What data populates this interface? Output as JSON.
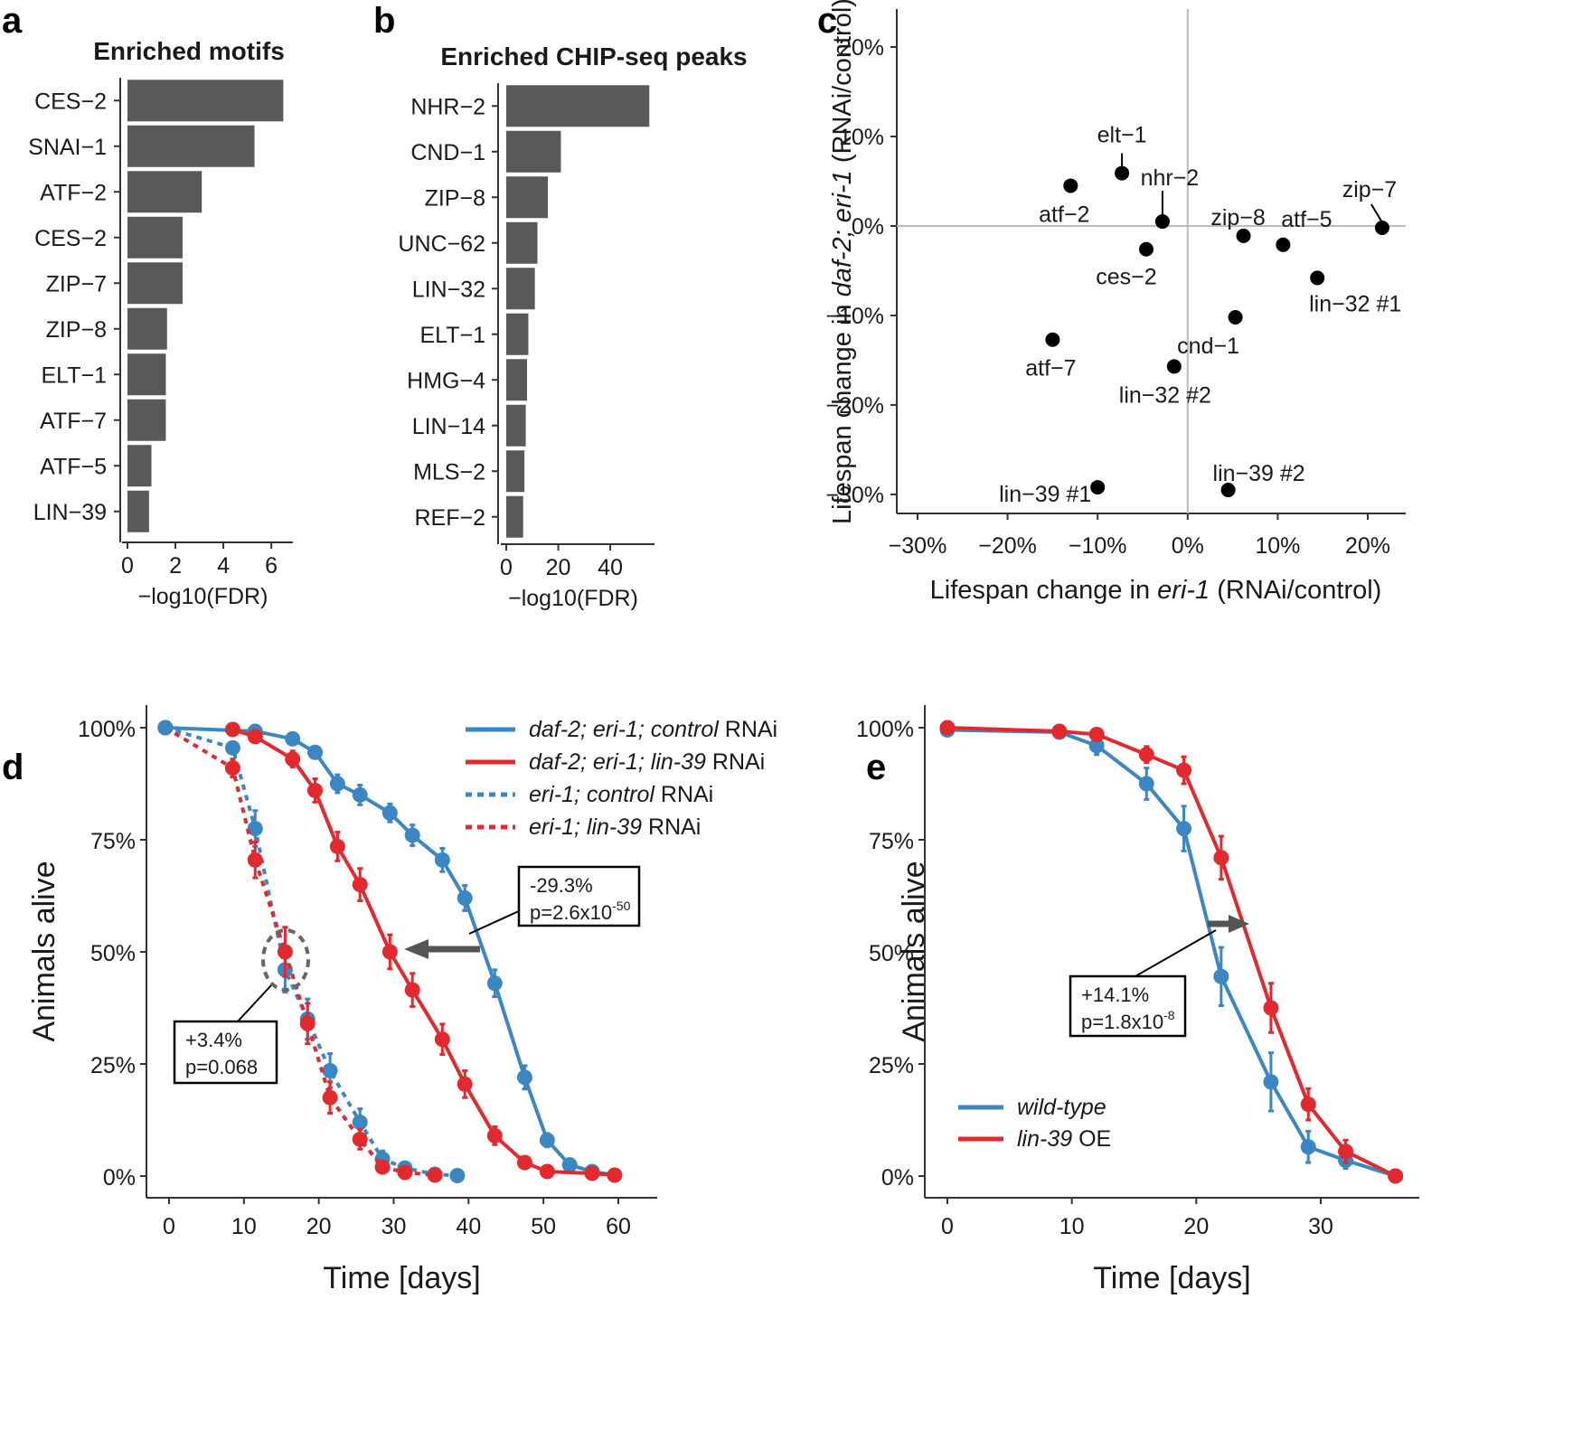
{
  "panels": {
    "a": "a",
    "b": "b",
    "c": "c",
    "d": "d",
    "e": "e"
  },
  "chart_data": [
    {
      "id": "a",
      "type": "bar",
      "orientation": "horizontal",
      "title": "Enriched motifs",
      "categories": [
        "CES−2",
        "SNAI−1",
        "ATF−2",
        "CES−2",
        "ZIP−7",
        "ZIP−8",
        "ELT−1",
        "ATF−7",
        "ATF−5",
        "LIN−39"
      ],
      "values": [
        6.5,
        5.3,
        3.1,
        2.3,
        2.3,
        1.65,
        1.6,
        1.6,
        1.0,
        0.9
      ],
      "xlabel": "−log10(FDR)",
      "xlim": [
        0,
        6.9
      ],
      "xticks": [
        0,
        2,
        4,
        6
      ],
      "xtick_labels": [
        "0",
        "2",
        "4",
        "6"
      ],
      "color": "#595959"
    },
    {
      "id": "b",
      "type": "bar",
      "orientation": "horizontal",
      "title": "Enriched CHIP-seq peaks",
      "categories": [
        "NHR−2",
        "CND−1",
        "ZIP−8",
        "UNC−62",
        "LIN−32",
        "ELT−1",
        "HMG−4",
        "LIN−14",
        "MLS−2",
        "REF−2"
      ],
      "values": [
        55,
        21,
        16,
        12,
        11,
        8.5,
        8,
        7.5,
        7,
        6.5
      ],
      "xlabel": "−log10(FDR)",
      "xlim": [
        0,
        57
      ],
      "xticks": [
        0,
        20,
        40
      ],
      "xtick_labels": [
        "0",
        "20",
        "40"
      ],
      "color": "#595959"
    },
    {
      "id": "c",
      "type": "scatter",
      "xlabel_parts": [
        {
          "t": "Lifespan change in ",
          "i": false
        },
        {
          "t": "eri-1",
          "i": true
        },
        {
          "t": " (RNAi/control)",
          "i": false
        }
      ],
      "ylabel_parts": [
        {
          "t": "Lifespan change in ",
          "i": false
        },
        {
          "t": "daf-2; eri-1",
          "i": true
        },
        {
          "t": " (RNAi/control)",
          "i": false
        }
      ],
      "xlim": [
        -33,
        25
      ],
      "ylim": [
        -32,
        24.5
      ],
      "xticks": [
        -30,
        -20,
        -10,
        0,
        10,
        20
      ],
      "xtick_labels": [
        "−30%",
        "−20%",
        "−10%",
        "0%",
        "10%",
        "20%"
      ],
      "yticks": [
        -30,
        -20,
        -10,
        0,
        10,
        20
      ],
      "ytick_labels": [
        "−30%",
        "−20%",
        "−10%",
        "0%",
        "10%",
        "20%"
      ],
      "points": [
        {
          "label": "elt−1",
          "x": -7.3,
          "y": 5.9
        },
        {
          "label": "atf−2",
          "x": -13.0,
          "y": 4.5
        },
        {
          "label": "nhr−2",
          "x": -2.8,
          "y": 0.5
        },
        {
          "label": "zip−7",
          "x": 21.6,
          "y": -0.2
        },
        {
          "label": "zip−8",
          "x": 6.2,
          "y": -1.1
        },
        {
          "label": "atf−5",
          "x": 10.6,
          "y": -2.1
        },
        {
          "label": "ces−2",
          "x": -4.6,
          "y": -2.6
        },
        {
          "label": "lin−32 #1",
          "x": 14.4,
          "y": -5.8
        },
        {
          "label": "cnd−1",
          "x": 5.3,
          "y": -10.2
        },
        {
          "label": "atf−7",
          "x": -15.0,
          "y": -12.7
        },
        {
          "label": "lin−32 #2",
          "x": -1.5,
          "y": -15.7
        },
        {
          "label": "lin−39 #1",
          "x": -10.0,
          "y": -29.2
        },
        {
          "label": "lin−39 #2",
          "x": 4.5,
          "y": -29.5
        }
      ]
    },
    {
      "id": "d",
      "type": "line",
      "xlabel": "Time [days]",
      "ylabel": "Animals alive",
      "xlim": [
        -3,
        65.5
      ],
      "ylim": [
        -3,
        104.5
      ],
      "xticks": [
        0,
        10,
        20,
        30,
        40,
        50,
        60
      ],
      "xtick_labels": [
        "0",
        "10",
        "20",
        "30",
        "40",
        "50",
        "60"
      ],
      "yticks": [
        0,
        25,
        50,
        75,
        100
      ],
      "ytick_labels": [
        "0%",
        "25%",
        "50%",
        "75%",
        "100%"
      ],
      "series": [
        {
          "name_parts": [
            {
              "t": "daf-2; eri-1; control",
              "i": true
            },
            {
              "t": " RNAi",
              "i": false
            }
          ],
          "color": "#3a87c4",
          "dash": false,
          "x": [
            -0.5,
            11.5,
            16.5,
            19.5,
            22.5,
            25.5,
            29.5,
            32.5,
            36.5,
            39.5,
            43.5,
            47.5,
            50.5,
            53.5,
            56.5,
            59.5
          ],
          "y": [
            100,
            99.2,
            97.5,
            94.5,
            87.5,
            85,
            81,
            76,
            70.5,
            62,
            43,
            22,
            8,
            2.5,
            1,
            0.2
          ],
          "err": [
            0,
            0.6,
            0.8,
            1.2,
            2,
            2.2,
            2,
            2.3,
            2.6,
            2.8,
            3,
            2.6,
            1.5,
            0.9,
            0.5,
            0
          ]
        },
        {
          "name_parts": [
            {
              "t": "daf-2; eri-1; lin-39",
              "i": true
            },
            {
              "t": " RNAi",
              "i": false
            }
          ],
          "color": "#e3292e",
          "dash": false,
          "x": [
            8.5,
            11.5,
            16.5,
            19.5,
            22.5,
            25.5,
            29.5,
            32.5,
            36.5,
            39.5,
            43.5,
            47.5,
            50.5,
            56.5,
            59.5
          ],
          "y": [
            99.6,
            98,
            93,
            86,
            73.5,
            65,
            50,
            41.5,
            30.5,
            20.5,
            9,
            3,
            1,
            0.6,
            0.2
          ],
          "err": [
            0.4,
            0.9,
            1.8,
            2.6,
            3.2,
            3.6,
            3.8,
            3.7,
            3.4,
            3,
            2,
            1.2,
            0.6,
            0.4,
            0
          ]
        },
        {
          "name_parts": [
            {
              "t": "eri-1; control",
              "i": true
            },
            {
              "t": " RNAi",
              "i": false
            }
          ],
          "color": "#3a87c4",
          "dash": true,
          "x": [
            -0.5,
            8.5,
            11.5,
            15.5,
            18.5,
            21.5,
            25.5,
            28.5,
            31.5,
            35.5,
            38.5
          ],
          "y": [
            100,
            95.5,
            77.5,
            46,
            35,
            23.5,
            12,
            3.8,
            1.8,
            0.4,
            0.1
          ],
          "err": [
            0,
            1.2,
            4,
            5,
            4.5,
            3.8,
            3,
            1.8,
            1.2,
            0.5,
            0
          ]
        },
        {
          "name_parts": [
            {
              "t": "eri-1; lin-39",
              "i": true
            },
            {
              "t": " RNAi",
              "i": false
            }
          ],
          "color": "#e3292e",
          "dash": true,
          "x": [
            -0.5,
            8.5,
            11.5,
            15.5,
            18.5,
            21.5,
            25.5,
            28.5,
            31.5,
            35.5
          ],
          "y": [
            100,
            91,
            70.5,
            50,
            34,
            17.5,
            8.2,
            2,
            0.8,
            0.2
          ],
          "err": [
            0,
            2,
            4,
            5.5,
            4.5,
            3.5,
            2.2,
            1.2,
            0.6,
            0
          ]
        }
      ],
      "annotations": [
        {
          "lines": [
            "-29.3%",
            "p=2.6x10"
          ],
          "superscript": "-50"
        },
        {
          "lines": [
            "+3.4%",
            "p=0.068"
          ],
          "superscript": ""
        }
      ]
    },
    {
      "id": "e",
      "type": "line",
      "xlabel": "Time [days]",
      "ylabel": "Animals alive",
      "xlim": [
        -2.2,
        37
      ],
      "ylim": [
        -3,
        104.5
      ],
      "xticks": [
        0,
        10,
        20,
        30
      ],
      "xtick_labels": [
        "0",
        "10",
        "20",
        "30"
      ],
      "yticks": [
        0,
        25,
        50,
        75,
        100
      ],
      "ytick_labels": [
        "0%",
        "25%",
        "50%",
        "75%",
        "100%"
      ],
      "series": [
        {
          "name_parts": [
            {
              "t": "wild-type",
              "i": true
            }
          ],
          "color": "#3a87c4",
          "dash": false,
          "x": [
            0,
            9,
            12,
            16,
            19,
            22,
            26,
            29,
            32,
            36
          ],
          "y": [
            99.5,
            99,
            96,
            87.5,
            77.5,
            44.5,
            21,
            6.5,
            3.5,
            0
          ],
          "err": [
            0.3,
            0.6,
            2,
            3.5,
            5,
            6.5,
            6.5,
            3.5,
            1.8,
            0
          ]
        },
        {
          "name_parts": [
            {
              "t": "lin-39",
              "i": true
            },
            {
              "t": " OE",
              "i": false
            }
          ],
          "color": "#e3292e",
          "dash": false,
          "x": [
            0,
            9,
            12,
            16,
            19,
            22,
            26,
            29,
            32,
            36
          ],
          "y": [
            100,
            99.2,
            98.5,
            94,
            90.5,
            71,
            37.5,
            16,
            5.5,
            0
          ],
          "err": [
            0.2,
            0.5,
            0.8,
            1.8,
            3,
            4.8,
            5.5,
            3.5,
            2.5,
            0
          ]
        }
      ],
      "annotations": [
        {
          "lines": [
            "+14.1%",
            "p=1.8x10"
          ],
          "superscript": "-8"
        }
      ]
    }
  ]
}
